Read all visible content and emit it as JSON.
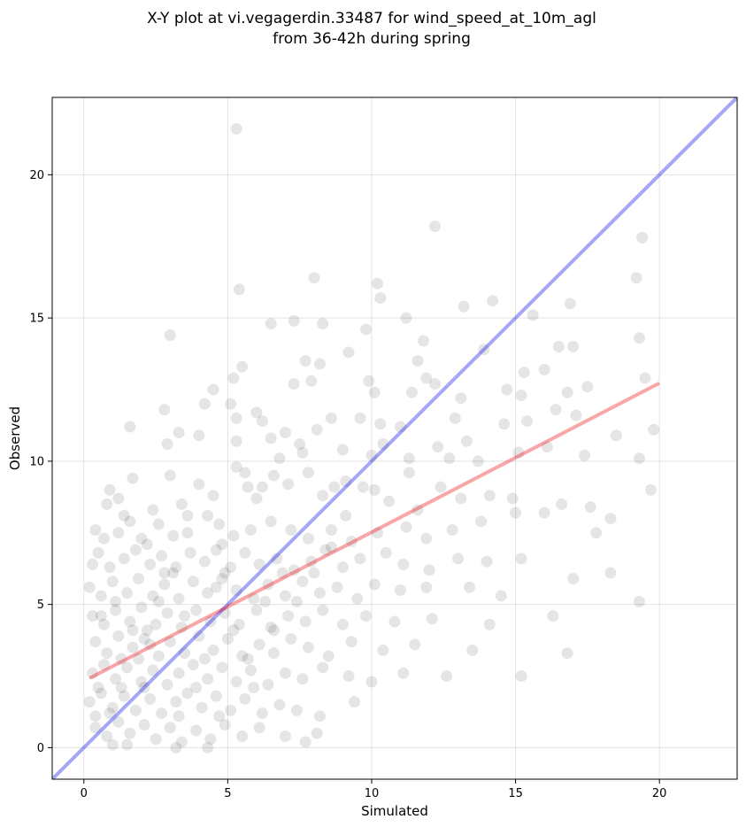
{
  "chart_data": {
    "type": "scatter",
    "title_line1": "X-Y plot at vi.vegagerdin.33487 for wind_speed_at_10m_agl",
    "title_line2": "from 36-42h during spring",
    "xlabel": "Simulated",
    "ylabel": "Observed",
    "xlim": [
      -1.1,
      22.7
    ],
    "ylim": [
      -1.1,
      22.7
    ],
    "xticks": [
      0,
      5,
      10,
      15,
      20
    ],
    "yticks": [
      0,
      5,
      10,
      15,
      20
    ],
    "grid": true,
    "point_color": "#000000",
    "point_alpha": 0.1,
    "identity_line": {
      "color": "#0000ee",
      "from": [
        -1.1,
        -1.1
      ],
      "to": [
        22.7,
        22.7
      ]
    },
    "regression_line": {
      "color": "#ee0000",
      "from": [
        0.25,
        2.45
      ],
      "to": [
        19.95,
        12.7
      ]
    },
    "points": [
      [
        5.3,
        21.6
      ],
      [
        12.2,
        18.2
      ],
      [
        19.4,
        17.8
      ],
      [
        8.0,
        16.4
      ],
      [
        5.4,
        16.0
      ],
      [
        10.2,
        16.2
      ],
      [
        19.2,
        16.4
      ],
      [
        10.3,
        15.7
      ],
      [
        13.2,
        15.4
      ],
      [
        14.2,
        15.6
      ],
      [
        16.9,
        15.5
      ],
      [
        15.6,
        15.1
      ],
      [
        3.0,
        14.4
      ],
      [
        6.5,
        14.8
      ],
      [
        7.3,
        14.9
      ],
      [
        8.3,
        14.8
      ],
      [
        9.8,
        14.6
      ],
      [
        11.2,
        15.0
      ],
      [
        11.8,
        14.2
      ],
      [
        19.3,
        14.3
      ],
      [
        16.5,
        14.0
      ],
      [
        17.0,
        14.0
      ],
      [
        5.5,
        13.3
      ],
      [
        7.7,
        13.5
      ],
      [
        8.2,
        13.4
      ],
      [
        9.2,
        13.8
      ],
      [
        11.6,
        13.5
      ],
      [
        13.9,
        13.9
      ],
      [
        15.3,
        13.1
      ],
      [
        16.0,
        13.2
      ],
      [
        4.5,
        12.5
      ],
      [
        5.2,
        12.9
      ],
      [
        6.0,
        11.7
      ],
      [
        7.3,
        12.7
      ],
      [
        7.9,
        12.8
      ],
      [
        9.9,
        12.8
      ],
      [
        10.1,
        12.4
      ],
      [
        11.4,
        12.4
      ],
      [
        11.9,
        12.9
      ],
      [
        12.2,
        12.7
      ],
      [
        13.1,
        12.2
      ],
      [
        14.7,
        12.5
      ],
      [
        15.2,
        12.3
      ],
      [
        16.8,
        12.4
      ],
      [
        17.5,
        12.6
      ],
      [
        19.5,
        12.9
      ],
      [
        1.6,
        11.2
      ],
      [
        2.8,
        11.8
      ],
      [
        4.2,
        12.0
      ],
      [
        5.1,
        12.0
      ],
      [
        5.3,
        11.5
      ],
      [
        6.2,
        11.4
      ],
      [
        7.0,
        11.0
      ],
      [
        8.6,
        11.5
      ],
      [
        9.6,
        11.5
      ],
      [
        10.3,
        11.3
      ],
      [
        11.0,
        11.2
      ],
      [
        12.9,
        11.5
      ],
      [
        14.6,
        11.3
      ],
      [
        15.4,
        11.4
      ],
      [
        16.4,
        11.8
      ],
      [
        17.1,
        11.6
      ],
      [
        19.8,
        11.1
      ],
      [
        2.9,
        10.6
      ],
      [
        3.3,
        11.0
      ],
      [
        4.0,
        10.9
      ],
      [
        5.3,
        10.7
      ],
      [
        6.5,
        10.8
      ],
      [
        7.6,
        10.3
      ],
      [
        9.0,
        10.4
      ],
      [
        10.0,
        10.2
      ],
      [
        11.3,
        10.1
      ],
      [
        12.3,
        10.5
      ],
      [
        13.3,
        10.7
      ],
      [
        13.7,
        10.0
      ],
      [
        15.1,
        10.3
      ],
      [
        16.1,
        10.5
      ],
      [
        17.4,
        10.2
      ],
      [
        18.5,
        10.9
      ],
      [
        19.3,
        10.1
      ],
      [
        0.8,
        8.5
      ],
      [
        0.9,
        9.0
      ],
      [
        1.2,
        8.7
      ],
      [
        1.7,
        9.4
      ],
      [
        2.4,
        8.3
      ],
      [
        3.0,
        9.5
      ],
      [
        3.4,
        8.5
      ],
      [
        4.0,
        9.2
      ],
      [
        4.5,
        8.8
      ],
      [
        5.3,
        9.8
      ],
      [
        5.7,
        9.1
      ],
      [
        6.0,
        8.7
      ],
      [
        6.6,
        9.5
      ],
      [
        7.1,
        9.2
      ],
      [
        7.8,
        9.6
      ],
      [
        8.3,
        8.8
      ],
      [
        9.1,
        9.3
      ],
      [
        10.1,
        9.0
      ],
      [
        10.6,
        8.6
      ],
      [
        11.6,
        8.3
      ],
      [
        12.4,
        9.1
      ],
      [
        13.1,
        8.7
      ],
      [
        14.1,
        8.8
      ],
      [
        14.9,
        8.7
      ],
      [
        16.6,
        8.5
      ],
      [
        17.6,
        8.4
      ],
      [
        19.7,
        9.0
      ],
      [
        0.4,
        7.6
      ],
      [
        0.7,
        7.3
      ],
      [
        1.2,
        7.5
      ],
      [
        1.6,
        7.9
      ],
      [
        2.0,
        7.3
      ],
      [
        2.6,
        7.8
      ],
      [
        3.1,
        7.4
      ],
      [
        3.6,
        7.5
      ],
      [
        4.3,
        8.1
      ],
      [
        4.7,
        7.8
      ],
      [
        5.2,
        7.4
      ],
      [
        5.8,
        7.6
      ],
      [
        6.5,
        7.9
      ],
      [
        7.2,
        7.6
      ],
      [
        7.8,
        7.3
      ],
      [
        8.6,
        7.0
      ],
      [
        9.3,
        7.2
      ],
      [
        10.2,
        7.5
      ],
      [
        11.2,
        7.7
      ],
      [
        11.9,
        7.3
      ],
      [
        12.8,
        7.6
      ],
      [
        13.8,
        7.9
      ],
      [
        15.0,
        8.2
      ],
      [
        16.0,
        8.2
      ],
      [
        17.8,
        7.5
      ],
      [
        18.3,
        8.0
      ],
      [
        0.3,
        6.4
      ],
      [
        0.5,
        6.8
      ],
      [
        0.9,
        6.3
      ],
      [
        1.4,
        6.6
      ],
      [
        1.8,
        6.9
      ],
      [
        2.3,
        6.4
      ],
      [
        2.7,
        6.7
      ],
      [
        3.2,
        6.3
      ],
      [
        3.7,
        6.8
      ],
      [
        4.2,
        6.5
      ],
      [
        4.6,
        6.9
      ],
      [
        5.1,
        6.3
      ],
      [
        5.6,
        6.8
      ],
      [
        6.1,
        6.4
      ],
      [
        6.7,
        6.6
      ],
      [
        7.3,
        6.2
      ],
      [
        7.9,
        6.5
      ],
      [
        8.4,
        6.9
      ],
      [
        9.0,
        6.3
      ],
      [
        9.6,
        6.6
      ],
      [
        10.5,
        6.8
      ],
      [
        11.1,
        6.4
      ],
      [
        12.0,
        6.2
      ],
      [
        13.0,
        6.6
      ],
      [
        14.0,
        6.5
      ],
      [
        15.2,
        6.6
      ],
      [
        17.0,
        5.9
      ],
      [
        18.3,
        6.1
      ],
      [
        0.2,
        5.6
      ],
      [
        0.6,
        5.3
      ],
      [
        1.0,
        5.8
      ],
      [
        1.5,
        5.4
      ],
      [
        1.9,
        5.9
      ],
      [
        2.4,
        5.3
      ],
      [
        2.8,
        5.7
      ],
      [
        3.3,
        5.2
      ],
      [
        3.8,
        5.8
      ],
      [
        4.3,
        5.4
      ],
      [
        4.8,
        5.9
      ],
      [
        5.3,
        5.5
      ],
      [
        5.9,
        5.2
      ],
      [
        6.4,
        5.7
      ],
      [
        7.0,
        5.3
      ],
      [
        7.6,
        5.8
      ],
      [
        8.2,
        5.4
      ],
      [
        8.8,
        5.6
      ],
      [
        9.5,
        5.2
      ],
      [
        10.1,
        5.7
      ],
      [
        11.0,
        5.5
      ],
      [
        11.9,
        5.6
      ],
      [
        13.4,
        5.6
      ],
      [
        14.5,
        5.3
      ],
      [
        19.3,
        5.1
      ],
      [
        0.3,
        4.6
      ],
      [
        0.7,
        4.3
      ],
      [
        1.1,
        4.8
      ],
      [
        1.6,
        4.4
      ],
      [
        2.0,
        4.9
      ],
      [
        2.5,
        4.3
      ],
      [
        2.9,
        4.7
      ],
      [
        3.4,
        4.2
      ],
      [
        3.9,
        4.8
      ],
      [
        4.4,
        4.4
      ],
      [
        4.9,
        4.7
      ],
      [
        5.4,
        4.3
      ],
      [
        6.0,
        4.8
      ],
      [
        6.5,
        4.2
      ],
      [
        7.1,
        4.6
      ],
      [
        7.7,
        4.4
      ],
      [
        8.3,
        4.8
      ],
      [
        9.0,
        4.3
      ],
      [
        9.8,
        4.6
      ],
      [
        10.8,
        4.4
      ],
      [
        12.1,
        4.5
      ],
      [
        14.1,
        4.3
      ],
      [
        16.3,
        4.6
      ],
      [
        0.4,
        3.7
      ],
      [
        0.8,
        3.3
      ],
      [
        1.2,
        3.9
      ],
      [
        1.7,
        3.5
      ],
      [
        2.1,
        3.8
      ],
      [
        2.6,
        3.2
      ],
      [
        3.0,
        3.7
      ],
      [
        3.5,
        3.3
      ],
      [
        4.0,
        3.9
      ],
      [
        4.5,
        3.4
      ],
      [
        5.0,
        3.8
      ],
      [
        5.5,
        3.2
      ],
      [
        6.1,
        3.6
      ],
      [
        6.6,
        3.3
      ],
      [
        7.2,
        3.8
      ],
      [
        7.8,
        3.5
      ],
      [
        8.5,
        3.2
      ],
      [
        9.3,
        3.7
      ],
      [
        10.4,
        3.4
      ],
      [
        11.5,
        3.6
      ],
      [
        13.5,
        3.4
      ],
      [
        16.8,
        3.3
      ],
      [
        0.3,
        2.6
      ],
      [
        0.7,
        2.9
      ],
      [
        1.1,
        2.4
      ],
      [
        1.5,
        2.8
      ],
      [
        2.0,
        2.3
      ],
      [
        2.4,
        2.7
      ],
      [
        2.9,
        2.2
      ],
      [
        3.3,
        2.6
      ],
      [
        3.8,
        2.9
      ],
      [
        4.3,
        2.4
      ],
      [
        4.8,
        2.8
      ],
      [
        5.3,
        2.3
      ],
      [
        5.8,
        2.7
      ],
      [
        6.4,
        2.2
      ],
      [
        7.0,
        2.6
      ],
      [
        7.6,
        2.4
      ],
      [
        8.3,
        2.8
      ],
      [
        9.2,
        2.5
      ],
      [
        10.0,
        2.3
      ],
      [
        11.1,
        2.6
      ],
      [
        12.6,
        2.5
      ],
      [
        15.2,
        2.5
      ],
      [
        0.2,
        1.6
      ],
      [
        0.6,
        1.9
      ],
      [
        1.0,
        1.4
      ],
      [
        1.4,
        1.8
      ],
      [
        1.8,
        1.3
      ],
      [
        2.3,
        1.7
      ],
      [
        2.7,
        1.2
      ],
      [
        3.2,
        1.6
      ],
      [
        3.6,
        1.9
      ],
      [
        4.1,
        1.4
      ],
      [
        4.6,
        1.8
      ],
      [
        5.1,
        1.3
      ],
      [
        5.6,
        1.7
      ],
      [
        6.2,
        1.2
      ],
      [
        6.8,
        1.5
      ],
      [
        7.4,
        1.3
      ],
      [
        8.2,
        1.1
      ],
      [
        9.4,
        1.6
      ],
      [
        0.4,
        0.7
      ],
      [
        0.8,
        0.4
      ],
      [
        1.2,
        0.9
      ],
      [
        1.6,
        0.5
      ],
      [
        2.1,
        0.8
      ],
      [
        2.5,
        0.3
      ],
      [
        3.0,
        0.7
      ],
      [
        3.4,
        0.2
      ],
      [
        3.9,
        0.6
      ],
      [
        4.4,
        0.3
      ],
      [
        4.9,
        0.8
      ],
      [
        5.5,
        0.4
      ],
      [
        6.1,
        0.7
      ],
      [
        7.0,
        0.4
      ],
      [
        7.7,
        0.2
      ],
      [
        8.1,
        0.5
      ],
      [
        1.5,
        0.1
      ],
      [
        3.2,
        0.0
      ],
      [
        4.3,
        0.0
      ],
      [
        0.9,
        1.2
      ],
      [
        1.3,
        2.1
      ],
      [
        1.9,
        3.1
      ],
      [
        2.2,
        4.1
      ],
      [
        2.6,
        5.1
      ],
      [
        3.1,
        6.1
      ],
      [
        3.5,
        4.6
      ],
      [
        3.9,
        2.1
      ],
      [
        4.2,
        3.1
      ],
      [
        4.6,
        5.6
      ],
      [
        4.9,
        6.1
      ],
      [
        5.2,
        4.1
      ],
      [
        5.7,
        3.1
      ],
      [
        6.3,
        5.1
      ],
      [
        6.9,
        6.1
      ],
      [
        2.1,
        2.1
      ],
      [
        2.3,
        3.6
      ],
      [
        1.7,
        4.1
      ],
      [
        1.3,
        3.1
      ],
      [
        1.1,
        5.1
      ],
      [
        2.8,
        6.1
      ],
      [
        3.3,
        1.1
      ],
      [
        4.7,
        1.1
      ],
      [
        5.9,
        2.1
      ],
      [
        6.6,
        4.1
      ],
      [
        7.4,
        5.1
      ],
      [
        8.0,
        6.1
      ],
      [
        8.6,
        7.6
      ],
      [
        9.1,
        8.1
      ],
      [
        9.7,
        9.1
      ],
      [
        10.4,
        10.6
      ],
      [
        11.3,
        9.6
      ],
      [
        12.7,
        10.1
      ],
      [
        7.5,
        10.6
      ],
      [
        8.1,
        11.1
      ],
      [
        8.7,
        9.1
      ],
      [
        6.2,
        9.1
      ],
      [
        6.8,
        10.1
      ],
      [
        5.6,
        9.6
      ],
      [
        4.8,
        7.1
      ],
      [
        3.6,
        8.1
      ],
      [
        2.2,
        7.1
      ],
      [
        1.4,
        8.1
      ],
      [
        0.6,
        4.6
      ],
      [
        0.5,
        2.1
      ],
      [
        0.4,
        1.1
      ],
      [
        1.0,
        0.1
      ]
    ]
  }
}
